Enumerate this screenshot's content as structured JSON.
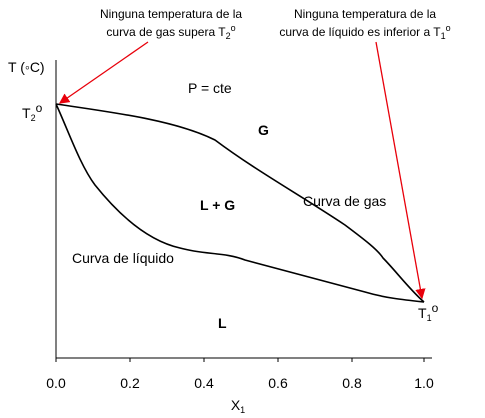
{
  "diagram": {
    "y_axis_label": "T (◦C)",
    "x_axis_label": "X",
    "x_axis_label_sub": "1",
    "x_ticks": [
      "0.0",
      "0.2",
      "0.4",
      "0.6",
      "0.8",
      "1.0"
    ],
    "t2_label": "T",
    "t2_sub": "2",
    "t2_sup": "o",
    "t1_label": "T",
    "t1_sub": "1",
    "t1_sup": "o",
    "pressure_label": "P = cte",
    "region_gas": "G",
    "region_two_phase": "L + G",
    "region_liquid": "L",
    "curve_gas_label": "Curva de gas",
    "curve_liquid_label": "Curva de líquido",
    "annotation_left": {
      "line1": "Ninguna temperatura de la",
      "line2_prefix": "curva de gas supera T",
      "line2_sub": "2",
      "line2_sup": "o"
    },
    "annotation_right": {
      "line1": "Ninguna temperatura de la",
      "line2_prefix": "curva de líquido es inferior a T",
      "line2_sub": "1",
      "line2_sup": "o"
    },
    "colors": {
      "arrow": "#e8000b",
      "curve": "#000000"
    }
  }
}
